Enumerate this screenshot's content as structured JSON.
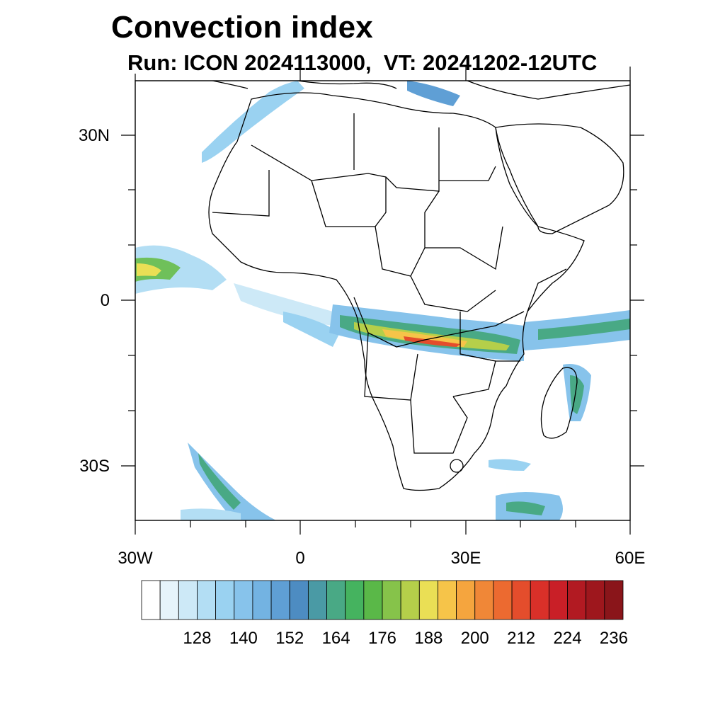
{
  "title": "Convection index",
  "subtitle": "Run: ICON 2024113000,  VT: 20241202-12UTC",
  "lat_labels": [
    "30N",
    "0",
    "30S"
  ],
  "lon_labels": [
    "30W",
    "0",
    "30E",
    "60E"
  ],
  "colorbar": {
    "labels": [
      "128",
      "140",
      "152",
      "164",
      "176",
      "188",
      "200",
      "212",
      "224",
      "236"
    ],
    "colors": [
      "#ffffff",
      "#e6f4fb",
      "#cde9f7",
      "#b3def4",
      "#9ad2f1",
      "#87c3eb",
      "#73b3e2",
      "#5f9fd5",
      "#4d8cc2",
      "#4a9aa5",
      "#49a985",
      "#45b35f",
      "#5ab848",
      "#86c34a",
      "#b5cf4a",
      "#eadf55",
      "#f6c449",
      "#f5a53e",
      "#f08737",
      "#ec6a30",
      "#e44d2c",
      "#da3029",
      "#c91f27",
      "#b21a22",
      "#9e171d",
      "#8a151a"
    ]
  },
  "map": {
    "region": "Africa",
    "lon_range": [
      -30,
      60
    ],
    "lat_range": [
      -40,
      40
    ],
    "projection": "cylindrical equidistant"
  }
}
